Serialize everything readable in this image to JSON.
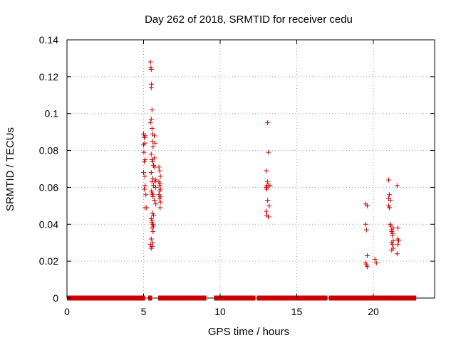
{
  "chart_data": {
    "type": "scatter",
    "title": "Day 262 of 2018, SRMTID for receiver cedu",
    "xlabel": "GPS time / hours",
    "ylabel": "SRMTID / TECUs",
    "xlim": [
      0,
      24
    ],
    "ylim": [
      0,
      0.14
    ],
    "xticks": [
      0,
      5,
      10,
      15,
      20
    ],
    "xtick_labels": [
      "0",
      "5",
      "10",
      "15",
      "20"
    ],
    "yticks": [
      0,
      0.02,
      0.04,
      0.06,
      0.08,
      0.1,
      0.12,
      0.14
    ],
    "ytick_labels": [
      "0",
      "0.02",
      "0.04",
      "0.06",
      "0.08",
      "0.1",
      "0.12",
      "0.14"
    ],
    "grid": true,
    "marker": "+",
    "color": "#cc0000",
    "zero_segments": [
      [
        0.0,
        5.1
      ],
      [
        5.3,
        5.55
      ],
      [
        5.95,
        9.1
      ],
      [
        9.6,
        12.3
      ],
      [
        12.4,
        17.0
      ],
      [
        17.1,
        22.8
      ]
    ],
    "series": [
      {
        "name": "SRMTID",
        "x": [
          5.45,
          5.5,
          5.48,
          5.52,
          5.5,
          5.55,
          5.5,
          5.45,
          5.55,
          5.6,
          5.58,
          5.62,
          5.5,
          5.55,
          5.6,
          5.65,
          5.5,
          5.6,
          5.55,
          5.65,
          5.52,
          5.6,
          5.55,
          5.62,
          5.58,
          5.65,
          5.5,
          5.55,
          5.6,
          5.65,
          5.55,
          5.62,
          5.5,
          5.6,
          5.55,
          5.45,
          5.5,
          5.55,
          5.0,
          5.05,
          5.1,
          5.0,
          5.08,
          5.02,
          5.1,
          5.05,
          5.0,
          5.08,
          5.1,
          5.05,
          5.15,
          5.1,
          5.2,
          5.7,
          5.75,
          5.7,
          5.72,
          5.8,
          5.75,
          5.78,
          5.7,
          5.8,
          6.0,
          6.05,
          6.1,
          6.0,
          6.08,
          6.05,
          6.1,
          6.0,
          6.05,
          6.1,
          6.08,
          6.05,
          6.1,
          13.1,
          13.15,
          13.0,
          13.05,
          13.1,
          13.0,
          13.05,
          13.1,
          13.15,
          13.0,
          13.05,
          13.2,
          13.15,
          13.25,
          19.5,
          19.6,
          19.5,
          19.55,
          19.6,
          19.5,
          19.55,
          19.6,
          20.1,
          20.2,
          21.0,
          21.05,
          21.0,
          21.1,
          21.0,
          21.05,
          21.1,
          21.15,
          21.2,
          21.25,
          21.3,
          21.2,
          21.25,
          21.3,
          21.2,
          21.25,
          21.3,
          21.2,
          21.55,
          21.6,
          21.6,
          21.65,
          21.6,
          21.55
        ],
        "y": [
          0.128,
          0.124,
          0.125,
          0.116,
          0.114,
          0.102,
          0.097,
          0.095,
          0.092,
          0.089,
          0.085,
          0.082,
          0.078,
          0.075,
          0.074,
          0.072,
          0.068,
          0.065,
          0.063,
          0.061,
          0.058,
          0.056,
          0.057,
          0.055,
          0.046,
          0.045,
          0.043,
          0.041,
          0.04,
          0.039,
          0.038,
          0.036,
          0.032,
          0.03,
          0.028,
          0.029,
          0.027,
          0.042,
          0.089,
          0.087,
          0.088,
          0.083,
          0.084,
          0.079,
          0.075,
          0.074,
          0.068,
          0.066,
          0.061,
          0.059,
          0.056,
          0.049,
          0.049,
          0.088,
          0.084,
          0.076,
          0.071,
          0.064,
          0.063,
          0.06,
          0.053,
          0.051,
          0.071,
          0.069,
          0.066,
          0.063,
          0.062,
          0.061,
          0.059,
          0.056,
          0.054,
          0.052,
          0.049,
          0.058,
          0.055,
          0.063,
          0.061,
          0.06,
          0.059,
          0.053,
          0.047,
          0.045,
          0.095,
          0.079,
          0.069,
          0.061,
          0.05,
          0.044,
          0.061,
          0.051,
          0.05,
          0.04,
          0.037,
          0.023,
          0.019,
          0.018,
          0.017,
          0.021,
          0.019,
          0.064,
          0.056,
          0.054,
          0.053,
          0.05,
          0.049,
          0.04,
          0.039,
          0.037,
          0.035,
          0.038,
          0.036,
          0.034,
          0.031,
          0.03,
          0.029,
          0.027,
          0.026,
          0.061,
          0.038,
          0.032,
          0.031,
          0.029,
          0.024
        ]
      }
    ]
  }
}
